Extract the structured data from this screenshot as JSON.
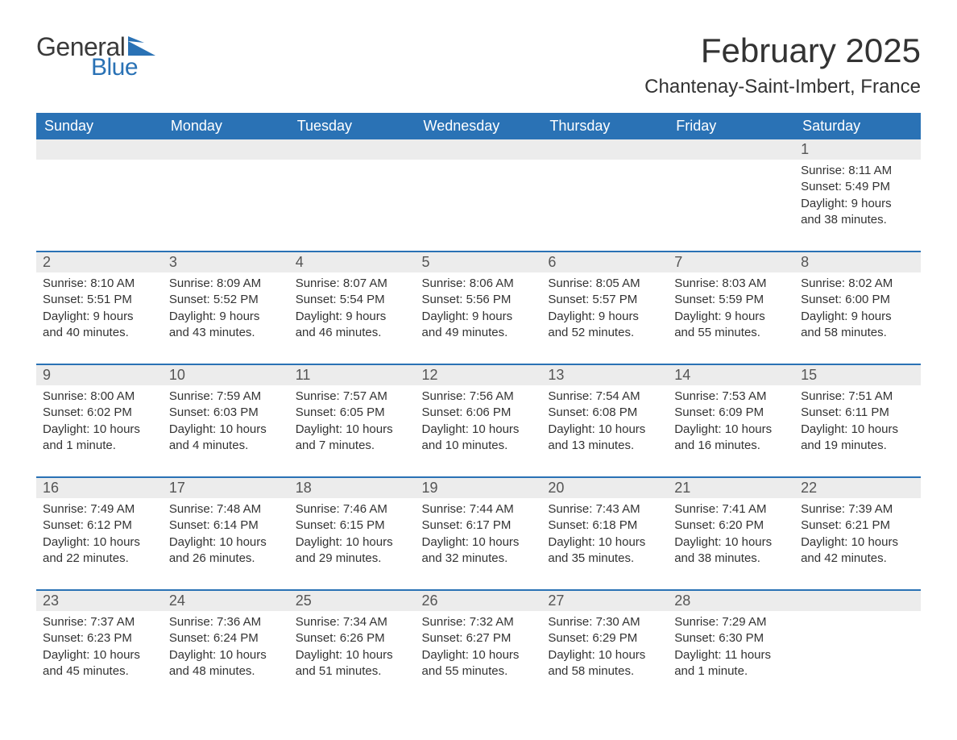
{
  "logo": {
    "text_general": "General",
    "text_blue": "Blue",
    "shape_color": "#2a72b5"
  },
  "title": {
    "month": "February 2025",
    "location": "Chantenay-Saint-Imbert, France"
  },
  "colors": {
    "header_bg": "#2a72b5",
    "header_text": "#ffffff",
    "daynum_bg": "#ececec",
    "daynum_text": "#555555",
    "body_text": "#333333",
    "week_border": "#2a72b5",
    "page_bg": "#ffffff"
  },
  "typography": {
    "month_title_fontsize": 42,
    "location_fontsize": 24,
    "weekday_fontsize": 18,
    "daynum_fontsize": 18,
    "detail_fontsize": 15
  },
  "weekdays": [
    "Sunday",
    "Monday",
    "Tuesday",
    "Wednesday",
    "Thursday",
    "Friday",
    "Saturday"
  ],
  "weeks": [
    [
      null,
      null,
      null,
      null,
      null,
      null,
      {
        "n": "1",
        "sunrise": "Sunrise: 8:11 AM",
        "sunset": "Sunset: 5:49 PM",
        "daylight": "Daylight: 9 hours and 38 minutes."
      }
    ],
    [
      {
        "n": "2",
        "sunrise": "Sunrise: 8:10 AM",
        "sunset": "Sunset: 5:51 PM",
        "daylight": "Daylight: 9 hours and 40 minutes."
      },
      {
        "n": "3",
        "sunrise": "Sunrise: 8:09 AM",
        "sunset": "Sunset: 5:52 PM",
        "daylight": "Daylight: 9 hours and 43 minutes."
      },
      {
        "n": "4",
        "sunrise": "Sunrise: 8:07 AM",
        "sunset": "Sunset: 5:54 PM",
        "daylight": "Daylight: 9 hours and 46 minutes."
      },
      {
        "n": "5",
        "sunrise": "Sunrise: 8:06 AM",
        "sunset": "Sunset: 5:56 PM",
        "daylight": "Daylight: 9 hours and 49 minutes."
      },
      {
        "n": "6",
        "sunrise": "Sunrise: 8:05 AM",
        "sunset": "Sunset: 5:57 PM",
        "daylight": "Daylight: 9 hours and 52 minutes."
      },
      {
        "n": "7",
        "sunrise": "Sunrise: 8:03 AM",
        "sunset": "Sunset: 5:59 PM",
        "daylight": "Daylight: 9 hours and 55 minutes."
      },
      {
        "n": "8",
        "sunrise": "Sunrise: 8:02 AM",
        "sunset": "Sunset: 6:00 PM",
        "daylight": "Daylight: 9 hours and 58 minutes."
      }
    ],
    [
      {
        "n": "9",
        "sunrise": "Sunrise: 8:00 AM",
        "sunset": "Sunset: 6:02 PM",
        "daylight": "Daylight: 10 hours and 1 minute."
      },
      {
        "n": "10",
        "sunrise": "Sunrise: 7:59 AM",
        "sunset": "Sunset: 6:03 PM",
        "daylight": "Daylight: 10 hours and 4 minutes."
      },
      {
        "n": "11",
        "sunrise": "Sunrise: 7:57 AM",
        "sunset": "Sunset: 6:05 PM",
        "daylight": "Daylight: 10 hours and 7 minutes."
      },
      {
        "n": "12",
        "sunrise": "Sunrise: 7:56 AM",
        "sunset": "Sunset: 6:06 PM",
        "daylight": "Daylight: 10 hours and 10 minutes."
      },
      {
        "n": "13",
        "sunrise": "Sunrise: 7:54 AM",
        "sunset": "Sunset: 6:08 PM",
        "daylight": "Daylight: 10 hours and 13 minutes."
      },
      {
        "n": "14",
        "sunrise": "Sunrise: 7:53 AM",
        "sunset": "Sunset: 6:09 PM",
        "daylight": "Daylight: 10 hours and 16 minutes."
      },
      {
        "n": "15",
        "sunrise": "Sunrise: 7:51 AM",
        "sunset": "Sunset: 6:11 PM",
        "daylight": "Daylight: 10 hours and 19 minutes."
      }
    ],
    [
      {
        "n": "16",
        "sunrise": "Sunrise: 7:49 AM",
        "sunset": "Sunset: 6:12 PM",
        "daylight": "Daylight: 10 hours and 22 minutes."
      },
      {
        "n": "17",
        "sunrise": "Sunrise: 7:48 AM",
        "sunset": "Sunset: 6:14 PM",
        "daylight": "Daylight: 10 hours and 26 minutes."
      },
      {
        "n": "18",
        "sunrise": "Sunrise: 7:46 AM",
        "sunset": "Sunset: 6:15 PM",
        "daylight": "Daylight: 10 hours and 29 minutes."
      },
      {
        "n": "19",
        "sunrise": "Sunrise: 7:44 AM",
        "sunset": "Sunset: 6:17 PM",
        "daylight": "Daylight: 10 hours and 32 minutes."
      },
      {
        "n": "20",
        "sunrise": "Sunrise: 7:43 AM",
        "sunset": "Sunset: 6:18 PM",
        "daylight": "Daylight: 10 hours and 35 minutes."
      },
      {
        "n": "21",
        "sunrise": "Sunrise: 7:41 AM",
        "sunset": "Sunset: 6:20 PM",
        "daylight": "Daylight: 10 hours and 38 minutes."
      },
      {
        "n": "22",
        "sunrise": "Sunrise: 7:39 AM",
        "sunset": "Sunset: 6:21 PM",
        "daylight": "Daylight: 10 hours and 42 minutes."
      }
    ],
    [
      {
        "n": "23",
        "sunrise": "Sunrise: 7:37 AM",
        "sunset": "Sunset: 6:23 PM",
        "daylight": "Daylight: 10 hours and 45 minutes."
      },
      {
        "n": "24",
        "sunrise": "Sunrise: 7:36 AM",
        "sunset": "Sunset: 6:24 PM",
        "daylight": "Daylight: 10 hours and 48 minutes."
      },
      {
        "n": "25",
        "sunrise": "Sunrise: 7:34 AM",
        "sunset": "Sunset: 6:26 PM",
        "daylight": "Daylight: 10 hours and 51 minutes."
      },
      {
        "n": "26",
        "sunrise": "Sunrise: 7:32 AM",
        "sunset": "Sunset: 6:27 PM",
        "daylight": "Daylight: 10 hours and 55 minutes."
      },
      {
        "n": "27",
        "sunrise": "Sunrise: 7:30 AM",
        "sunset": "Sunset: 6:29 PM",
        "daylight": "Daylight: 10 hours and 58 minutes."
      },
      {
        "n": "28",
        "sunrise": "Sunrise: 7:29 AM",
        "sunset": "Sunset: 6:30 PM",
        "daylight": "Daylight: 11 hours and 1 minute."
      },
      null
    ]
  ]
}
